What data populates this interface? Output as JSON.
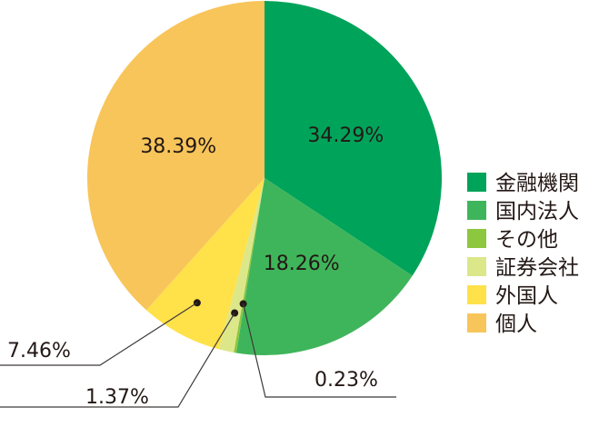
{
  "chart_data": {
    "type": "pie",
    "slices": [
      {
        "name": "金融機関",
        "value": 34.29,
        "label": "34.29%",
        "color": "#00a35a"
      },
      {
        "name": "国内法人",
        "value": 18.26,
        "label": "18.26%",
        "color": "#3fb55b"
      },
      {
        "name": "その他",
        "value": 0.23,
        "label": "0.23%",
        "color": "#8dc63f"
      },
      {
        "name": "証券会社",
        "value": 1.37,
        "label": "1.37%",
        "color": "#dce78a"
      },
      {
        "name": "外国人",
        "value": 7.46,
        "label": "7.46%",
        "color": "#ffe14a"
      },
      {
        "name": "個人",
        "value": 38.39,
        "label": "38.39%",
        "color": "#f8c55a"
      }
    ],
    "start_angle": "12 o'clock",
    "direction": "clockwise",
    "legend_position": "right"
  }
}
